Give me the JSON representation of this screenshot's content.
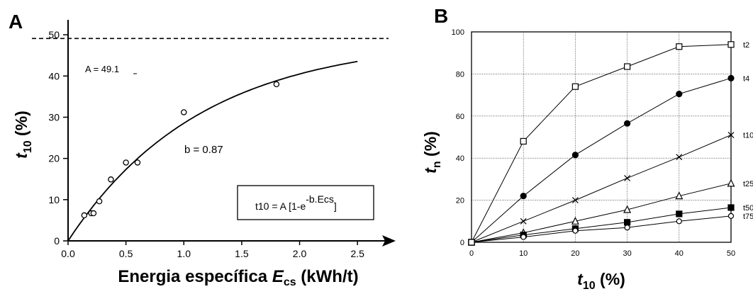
{
  "panels": {
    "a": {
      "label": "A",
      "ylabel_main": "t",
      "ylabel_sub": "10",
      "ylabel_unit": " (%)",
      "xlabel_main": "Energia específica ",
      "xlabel_var": "E",
      "xlabel_sub": "cs",
      "xlabel_unit": " (kWh/t)",
      "annot_A": "A = 49.1",
      "annot_b": "b = 0.87",
      "formula_left": "t10 = A [1-e",
      "formula_exp": "-b.Ecs",
      "formula_right": "]"
    },
    "b": {
      "label": "B",
      "ylabel_main": "t",
      "ylabel_sub": "n",
      "ylabel_unit": " (%)",
      "xlabel_main": "t",
      "xlabel_sub": "10",
      "xlabel_unit": " (%)"
    }
  },
  "chart_data": [
    {
      "type": "scatter",
      "panel": "A",
      "xlim": [
        0,
        2.75
      ],
      "ylim": [
        0,
        55
      ],
      "xticks": [
        "0.0",
        "0.5",
        "1.0",
        "1.5",
        "2.0",
        "2.5"
      ],
      "yticks": [
        "0",
        "10",
        "20",
        "30",
        "40",
        "50"
      ],
      "grid": false,
      "asymptote": 49.1,
      "fit": {
        "A": 49.1,
        "b": 0.87,
        "x_max": 2.5
      },
      "points": [
        {
          "x": 0.14,
          "y": 6.2
        },
        {
          "x": 0.2,
          "y": 6.7
        },
        {
          "x": 0.22,
          "y": 6.7
        },
        {
          "x": 0.27,
          "y": 9.6
        },
        {
          "x": 0.37,
          "y": 14.9
        },
        {
          "x": 0.5,
          "y": 19.0
        },
        {
          "x": 0.6,
          "y": 19.0
        },
        {
          "x": 1.0,
          "y": 31.2
        },
        {
          "x": 1.8,
          "y": 38.0
        }
      ]
    },
    {
      "type": "line",
      "panel": "B",
      "xlim": [
        0,
        50
      ],
      "ylim": [
        0,
        100
      ],
      "xticks": [
        "0",
        "10",
        "20",
        "30",
        "40",
        "50"
      ],
      "yticks": [
        "0",
        "20",
        "40",
        "60",
        "80",
        "100"
      ],
      "grid": true,
      "x": [
        0,
        10,
        20,
        30,
        40,
        50
      ],
      "series": [
        {
          "name": "t2",
          "marker": "square-open",
          "values": [
            0,
            48,
            74,
            83.5,
            93,
            94
          ]
        },
        {
          "name": "t4",
          "marker": "circle-filled",
          "values": [
            0,
            22,
            41.5,
            56.5,
            70.5,
            78
          ]
        },
        {
          "name": "t10",
          "marker": "x",
          "values": [
            0,
            10,
            20,
            30.5,
            40.5,
            51
          ]
        },
        {
          "name": "t25",
          "marker": "triangle-open",
          "values": [
            0,
            4.5,
            10,
            15.5,
            22,
            28
          ]
        },
        {
          "name": "t50",
          "marker": "square-filled",
          "values": [
            0,
            3.5,
            6.5,
            9.5,
            13.5,
            16.5
          ]
        },
        {
          "name": "t75",
          "marker": "circle-open",
          "values": [
            0,
            2.5,
            5.5,
            7,
            10,
            12.5
          ]
        }
      ]
    }
  ]
}
